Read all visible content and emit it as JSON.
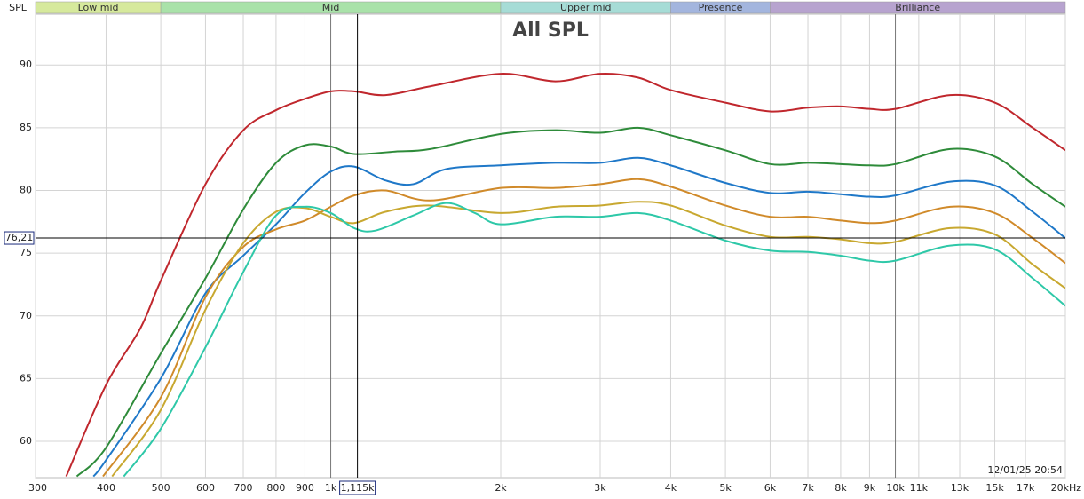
{
  "chart_data": {
    "type": "line",
    "title": "All SPL",
    "y_label": "SPL",
    "timestamp": "12/01/25 20:54",
    "xscale": "log",
    "grid": true,
    "xlim": [
      300,
      20000
    ],
    "ylim": [
      57.1,
      94.05
    ],
    "yticks": [
      60,
      65,
      70,
      75,
      80,
      85,
      90
    ],
    "xticks": [
      {
        "value": 300,
        "label": "300"
      },
      {
        "value": 400,
        "label": "400"
      },
      {
        "value": 500,
        "label": "500"
      },
      {
        "value": 600,
        "label": "600"
      },
      {
        "value": 700,
        "label": "700"
      },
      {
        "value": 800,
        "label": "800"
      },
      {
        "value": 900,
        "label": "900"
      },
      {
        "value": 1000,
        "label": "1k"
      },
      {
        "value": 2000,
        "label": "2k"
      },
      {
        "value": 3000,
        "label": "3k"
      },
      {
        "value": 4000,
        "label": "4k"
      },
      {
        "value": 5000,
        "label": "5k"
      },
      {
        "value": 6000,
        "label": "6k"
      },
      {
        "value": 7000,
        "label": "7k"
      },
      {
        "value": 8000,
        "label": "8k"
      },
      {
        "value": 9000,
        "label": "9k"
      },
      {
        "value": 10000,
        "label": "10k"
      },
      {
        "value": 11000,
        "label": "11k"
      },
      {
        "value": 13000,
        "label": "13k"
      },
      {
        "value": 15000,
        "label": "15k"
      },
      {
        "value": 17000,
        "label": "17k"
      },
      {
        "value": 20000,
        "label": "20kHz"
      }
    ],
    "bands": [
      {
        "label": "Low mid",
        "from": 300,
        "to": 500,
        "color": "#d6e99c"
      },
      {
        "label": "Mid",
        "from": 500,
        "to": 2000,
        "color": "#a9e2a9"
      },
      {
        "label": "Upper mid",
        "from": 2000,
        "to": 4000,
        "color": "#a6dcd6"
      },
      {
        "label": "Presence",
        "from": 4000,
        "to": 6000,
        "color": "#a3b5de"
      },
      {
        "label": "Brilliance",
        "from": 6000,
        "to": 20000,
        "color": "#b7a3cf"
      }
    ],
    "cursor": {
      "x": {
        "value": 1115,
        "label": "1,115k"
      },
      "y": {
        "value": 76.21,
        "label": "76,21"
      }
    },
    "series": [
      {
        "color": "#c0272d",
        "x": [
          340,
          400,
          460,
          500,
          600,
          700,
          800,
          900,
          1000,
          1100,
          1250,
          1500,
          2000,
          2500,
          3000,
          3500,
          4000,
          5000,
          6000,
          7000,
          8000,
          9000,
          10000,
          12500,
          15000,
          17500,
          20000
        ],
        "values": [
          57.2,
          64.5,
          69,
          72.8,
          80.5,
          84.8,
          86.4,
          87.3,
          87.9,
          87.9,
          87.6,
          88.3,
          89.3,
          88.7,
          89.3,
          89.0,
          88.0,
          87.0,
          86.3,
          86.6,
          86.7,
          86.5,
          86.5,
          87.6,
          87.0,
          85.0,
          83.2
        ]
      },
      {
        "color": "#2e8b3a",
        "x": [
          355,
          400,
          500,
          600,
          700,
          800,
          900,
          1000,
          1100,
          1300,
          1500,
          2000,
          2500,
          3000,
          3500,
          4000,
          5000,
          6000,
          7000,
          8000,
          9000,
          10000,
          12500,
          15000,
          17500,
          20000
        ],
        "values": [
          57.2,
          59.5,
          67,
          73,
          78.5,
          82.2,
          83.6,
          83.5,
          82.9,
          83.1,
          83.3,
          84.5,
          84.8,
          84.6,
          85.0,
          84.4,
          83.2,
          82.1,
          82.2,
          82.1,
          82.0,
          82.1,
          83.3,
          82.7,
          80.5,
          78.7
        ]
      },
      {
        "color": "#1f78c8",
        "x": [
          380,
          400,
          500,
          600,
          700,
          800,
          900,
          1000,
          1100,
          1250,
          1400,
          1600,
          2000,
          2500,
          3000,
          3500,
          4000,
          5000,
          6000,
          7000,
          8000,
          9000,
          10000,
          12500,
          15000,
          17500,
          20000
        ],
        "values": [
          57.2,
          58.5,
          65,
          71.8,
          74.8,
          77.3,
          79.8,
          81.5,
          81.9,
          80.8,
          80.5,
          81.7,
          82.0,
          82.2,
          82.2,
          82.6,
          82.0,
          80.6,
          79.8,
          79.9,
          79.7,
          79.5,
          79.6,
          80.7,
          80.4,
          78.3,
          76.2
        ]
      },
      {
        "color": "#d08a2a",
        "x": [
          395,
          500,
          600,
          700,
          800,
          900,
          1000,
          1100,
          1250,
          1500,
          2000,
          2500,
          3000,
          3500,
          4000,
          5000,
          6000,
          7000,
          8000,
          9000,
          10000,
          12500,
          15000,
          17500,
          20000
        ],
        "values": [
          57.2,
          63.5,
          71.5,
          75.5,
          76.9,
          77.6,
          78.7,
          79.6,
          80.0,
          79.2,
          80.2,
          80.2,
          80.5,
          80.9,
          80.3,
          78.8,
          77.9,
          77.9,
          77.6,
          77.4,
          77.6,
          78.7,
          78.2,
          76.2,
          74.2
        ]
      },
      {
        "color": "#c8a830",
        "x": [
          410,
          500,
          600,
          700,
          800,
          900,
          1000,
          1100,
          1250,
          1500,
          2000,
          2500,
          3000,
          3500,
          4000,
          5000,
          6000,
          7000,
          8000,
          9000,
          10000,
          12500,
          15000,
          17500,
          20000
        ],
        "values": [
          57.2,
          62.5,
          70.5,
          75.8,
          78.3,
          78.6,
          77.9,
          77.4,
          78.3,
          78.8,
          78.2,
          78.7,
          78.8,
          79.1,
          78.8,
          77.2,
          76.3,
          76.3,
          76.1,
          75.8,
          75.9,
          77.0,
          76.5,
          74.1,
          72.2
        ]
      },
      {
        "color": "#2ec8a8",
        "x": [
          430,
          500,
          600,
          700,
          800,
          900,
          1000,
          1100,
          1200,
          1400,
          1600,
          1800,
          2000,
          2500,
          3000,
          3500,
          4000,
          5000,
          6000,
          7000,
          8000,
          9000,
          10000,
          12500,
          15000,
          17500,
          20000
        ],
        "values": [
          57.2,
          61,
          67.5,
          73.5,
          78,
          78.7,
          78.2,
          77.0,
          76.8,
          78.0,
          79.0,
          78.2,
          77.3,
          77.9,
          77.9,
          78.2,
          77.6,
          76.0,
          75.2,
          75.1,
          74.8,
          74.4,
          74.4,
          75.6,
          75.3,
          73.0,
          70.8
        ]
      }
    ]
  }
}
